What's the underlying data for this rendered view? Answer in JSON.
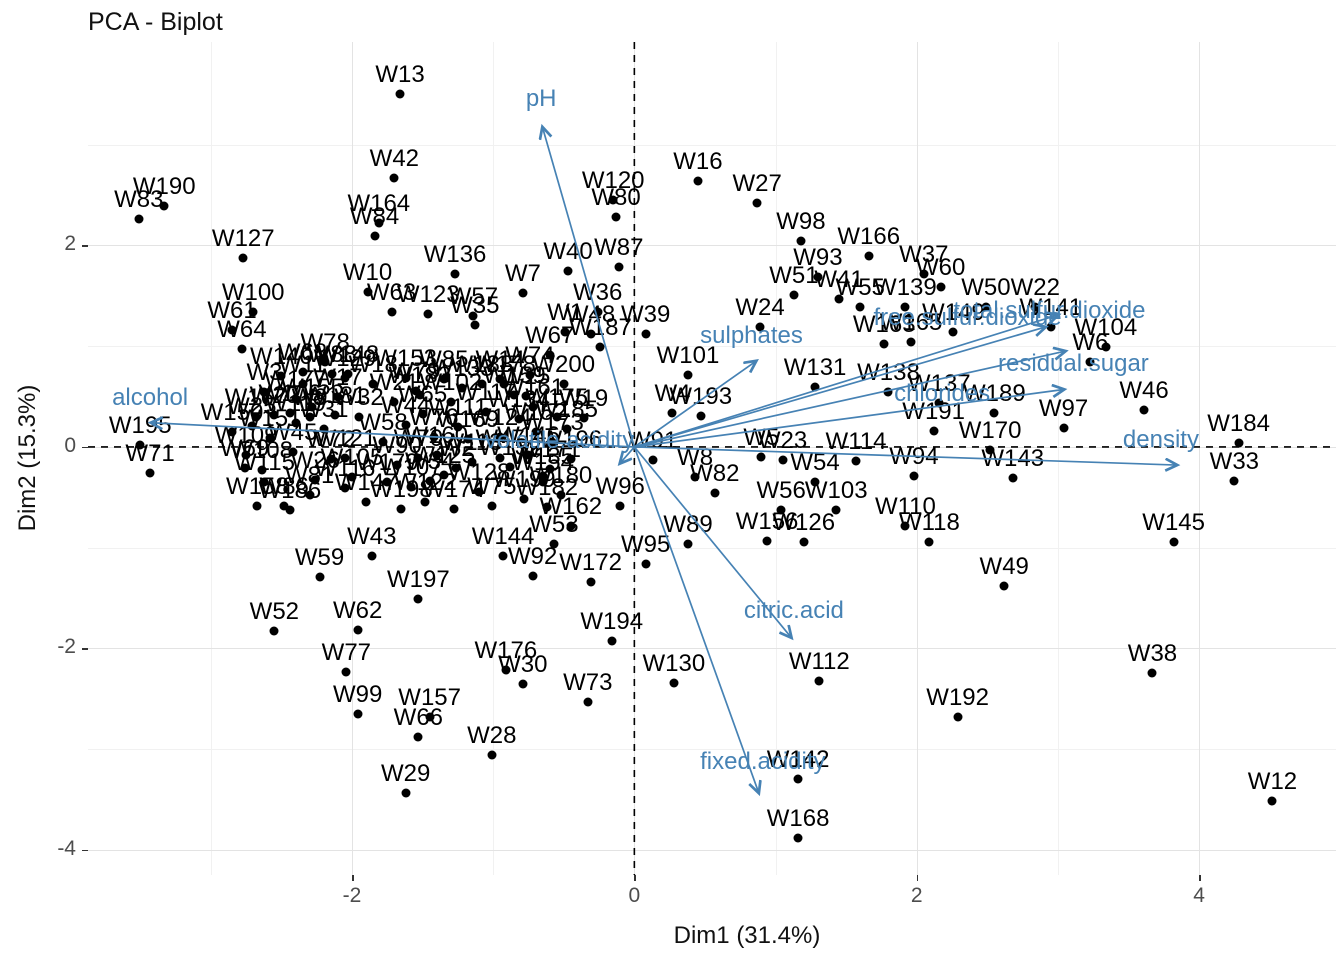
{
  "title": "PCA - Biplot",
  "chart_data": {
    "type": "scatter",
    "title": "PCA - Biplot",
    "xlabel": "Dim1 (31.4%)",
    "ylabel": "Dim2 (15.3%)",
    "xlim": [
      -3.87,
      4.97
    ],
    "ylim": [
      -4.25,
      4.02
    ],
    "x_ticks": [
      -2,
      0,
      2,
      4
    ],
    "x_minor_ticks": [
      -3,
      -1,
      1,
      3
    ],
    "y_ticks": [
      -4,
      -2,
      0,
      2
    ],
    "y_minor_ticks": [
      -3,
      -1,
      1,
      3
    ],
    "grid": true,
    "legend": "none",
    "zero_lines": "dashed",
    "colors": {
      "points": "#000000",
      "arrows": "#4682B4",
      "grid_major": "#e3e3e3",
      "grid_minor": "#f1f1f1",
      "axis_text": "#4d4d4d",
      "zero_line": "#000000"
    },
    "variables": [
      {
        "name": "pH",
        "tip": {
          "x": -0.65,
          "y": 3.17
        },
        "label": {
          "x": -0.66,
          "y": 3.45
        }
      },
      {
        "name": "sulphates",
        "tip": {
          "x": 0.86,
          "y": 0.85
        },
        "label": {
          "x": 0.83,
          "y": 1.1
        }
      },
      {
        "name": "alcohol",
        "tip": {
          "x": -3.42,
          "y": 0.24
        },
        "label": {
          "x": -3.43,
          "y": 0.49
        }
      },
      {
        "name": "volatile.acidity",
        "tip": {
          "x": -0.1,
          "y": -0.16
        },
        "label": {
          "x": -0.53,
          "y": 0.06
        }
      },
      {
        "name": "citric.acid",
        "tip": {
          "x": 1.11,
          "y": -1.89
        },
        "label": {
          "x": 1.13,
          "y": -1.63
        }
      },
      {
        "name": "fixed.acidity",
        "tip": {
          "x": 0.88,
          "y": -3.43
        },
        "label": {
          "x": 0.91,
          "y": -3.13
        }
      },
      {
        "name": "density",
        "tip": {
          "x": 3.84,
          "y": -0.18
        },
        "label": {
          "x": 3.73,
          "y": 0.07
        }
      },
      {
        "name": "chlorides",
        "tip": {
          "x": 3.04,
          "y": 0.57
        },
        "label": {
          "x": 2.18,
          "y": 0.53
        }
      },
      {
        "name": "residual.sugar",
        "tip": {
          "x": 3.05,
          "y": 0.95
        },
        "label": {
          "x": 3.11,
          "y": 0.82
        }
      },
      {
        "name": "free.sulfur.dioxide",
        "tip": {
          "x": 2.91,
          "y": 1.19
        },
        "label": {
          "x": 2.36,
          "y": 1.28
        }
      },
      {
        "name": "total.sulfur.dioxide",
        "tip": {
          "x": 3.0,
          "y": 1.31
        },
        "label": {
          "x": 2.94,
          "y": 1.35
        }
      }
    ],
    "points": [
      [
        "W1",
        -0.49,
        1.14
      ],
      [
        "W2",
        -1.26,
        -0.21
      ],
      [
        "W3",
        -2.62,
        0.55
      ],
      [
        "W4",
        0.27,
        0.34
      ],
      [
        "W5",
        0.9,
        -0.1
      ],
      [
        "W6",
        3.23,
        0.84
      ],
      [
        "W7",
        -0.79,
        1.53
      ],
      [
        "W8",
        0.43,
        -0.3
      ],
      [
        "W9",
        -2.3,
        0.3
      ],
      [
        "W10",
        -1.89,
        1.54
      ],
      [
        "W11",
        -2.35,
        0.62
      ],
      [
        "W12",
        4.52,
        -3.52
      ],
      [
        "W13",
        -1.66,
        3.5
      ],
      [
        "W14",
        -0.95,
        0.67
      ],
      [
        "W15",
        -0.77,
        0.51
      ],
      [
        "W16",
        0.45,
        2.64
      ],
      [
        "W17",
        -2.1,
        0.5
      ],
      [
        "W18",
        -1.85,
        0.62
      ],
      [
        "W19",
        -0.36,
        0.29
      ],
      [
        "W20",
        -2.55,
        0.32
      ],
      [
        "W21",
        -1.7,
        0.45
      ],
      [
        "W22",
        2.84,
        1.39
      ],
      [
        "W23",
        1.05,
        -0.13
      ],
      [
        "W24",
        0.89,
        1.19
      ],
      [
        "W25",
        -2.71,
        0.21
      ],
      [
        "W26",
        -2.26,
        -0.33
      ],
      [
        "W27",
        0.87,
        2.42
      ],
      [
        "W28",
        -1.01,
        -3.06
      ],
      [
        "W29",
        -1.62,
        -3.44
      ],
      [
        "W30",
        -0.79,
        -2.35
      ],
      [
        "W31",
        -2.2,
        0.18
      ],
      [
        "W32",
        -1.95,
        0.3
      ],
      [
        "W33",
        4.25,
        -0.34
      ],
      [
        "W34",
        -1.45,
        -0.34
      ],
      [
        "W35",
        -1.13,
        1.21
      ],
      [
        "W36",
        -0.26,
        1.34
      ],
      [
        "W37",
        2.05,
        1.72
      ],
      [
        "W38",
        3.67,
        -2.24
      ],
      [
        "W39",
        0.08,
        1.12
      ],
      [
        "W40",
        -0.47,
        1.75
      ],
      [
        "W41",
        1.45,
        1.47
      ],
      [
        "W42",
        -1.7,
        2.67
      ],
      [
        "W43",
        -1.86,
        -1.08
      ],
      [
        "W44",
        -1.62,
        0.22
      ],
      [
        "W45",
        -2.42,
        -0.05
      ],
      [
        "W46",
        3.61,
        0.37
      ],
      [
        "W47",
        -0.95,
        -0.11
      ],
      [
        "W48",
        -0.31,
        1.12
      ],
      [
        "W49",
        2.62,
        -1.38
      ],
      [
        "W50",
        2.49,
        1.39
      ],
      [
        "W51",
        1.13,
        1.51
      ],
      [
        "W52",
        -2.55,
        -1.83
      ],
      [
        "W53",
        -0.57,
        -0.96
      ],
      [
        "W54",
        1.28,
        -0.35
      ],
      [
        "W55",
        1.6,
        1.39
      ],
      [
        "W56",
        1.04,
        -0.63
      ],
      [
        "W57",
        -1.14,
        1.3
      ],
      [
        "W58",
        -1.78,
        0.05
      ],
      [
        "W59",
        -2.23,
        -1.29
      ],
      [
        "W60",
        2.17,
        1.59
      ],
      [
        "W61",
        -2.85,
        1.16
      ],
      [
        "W62",
        -1.96,
        -1.82
      ],
      [
        "W63",
        -1.72,
        1.34
      ],
      [
        "W64",
        -2.78,
        0.97
      ],
      [
        "W65",
        -1.5,
        0.33
      ],
      [
        "W66",
        -1.53,
        -2.88
      ],
      [
        "W67",
        -0.6,
        0.91
      ],
      [
        "W68",
        -2.35,
        0.74
      ],
      [
        "W69",
        -2.76,
        -0.21
      ],
      [
        "W70",
        -1.53,
        -0.11
      ],
      [
        "W71",
        -3.43,
        -0.26
      ],
      [
        "W72",
        -2.15,
        -0.12
      ],
      [
        "W73",
        -0.33,
        -2.53
      ],
      [
        "W74",
        -0.74,
        0.71
      ],
      [
        "W75",
        -1.01,
        -0.59
      ],
      [
        "W76",
        -1.42,
        0.1
      ],
      [
        "W77",
        -2.04,
        -2.23
      ],
      [
        "W78",
        -2.19,
        0.84
      ],
      [
        "W79",
        -1.55,
        0.56
      ],
      [
        "W80",
        -0.13,
        2.28
      ],
      [
        "W81",
        -2.3,
        -0.48
      ],
      [
        "W82",
        0.57,
        -0.46
      ],
      [
        "W83",
        -3.51,
        2.26
      ],
      [
        "W84",
        -1.84,
        2.09
      ],
      [
        "W85",
        -1.35,
        0.67
      ],
      [
        "W86",
        -2.48,
        -0.59
      ],
      [
        "W87",
        -0.11,
        1.79
      ],
      [
        "W88",
        -2.14,
        0.72
      ],
      [
        "W89",
        0.38,
        -0.96
      ],
      [
        "W90",
        -1.68,
        -0.18
      ],
      [
        "W91",
        0.13,
        -0.13
      ],
      [
        "W92",
        -0.72,
        -1.28
      ],
      [
        "W93",
        1.3,
        1.69
      ],
      [
        "W94",
        1.98,
        -0.29
      ],
      [
        "W95",
        0.08,
        -1.16
      ],
      [
        "W96",
        -0.1,
        -0.59
      ],
      [
        "W97",
        3.04,
        0.19
      ],
      [
        "W98",
        1.18,
        2.04
      ],
      [
        "W99",
        -1.96,
        -2.65
      ],
      [
        "W100",
        -2.7,
        1.34
      ],
      [
        "W101",
        0.38,
        0.71
      ],
      [
        "W102",
        -1.3,
        0.45
      ],
      [
        "W103",
        1.43,
        -0.63
      ],
      [
        "W104",
        3.34,
        0.99
      ],
      [
        "W105",
        -2.0,
        -0.3
      ],
      [
        "W106",
        -2.44,
        0.34
      ],
      [
        "W107",
        -1.58,
        -0.4
      ],
      [
        "W108",
        -2.64,
        -0.23
      ],
      [
        "W109",
        -2.75,
        -0.08
      ],
      [
        "W110",
        1.92,
        -0.79
      ],
      [
        "W111",
        -1.25,
        0.2
      ],
      [
        "W112",
        1.31,
        -2.32
      ],
      [
        "W113",
        -1.15,
        -0.15
      ],
      [
        "W114",
        1.57,
        -0.14
      ],
      [
        "W115",
        -2.62,
        -0.35
      ],
      [
        "W116",
        -2.05,
        -0.41
      ],
      [
        "W117",
        -1.05,
        0.35
      ],
      [
        "W118",
        2.09,
        -0.94
      ],
      [
        "W119",
        -2.4,
        0.24
      ],
      [
        "W120",
        -0.15,
        2.45
      ],
      [
        "W121",
        -2.05,
        -0.11
      ],
      [
        "W122",
        -1.48,
        -0.55
      ],
      [
        "W123",
        -1.46,
        1.32
      ],
      [
        "W124",
        -0.95,
        0.1
      ],
      [
        "W125",
        -1.35,
        -0.28
      ],
      [
        "W126",
        1.2,
        -0.94
      ],
      [
        "W127",
        -2.77,
        1.88
      ],
      [
        "W128",
        -1.1,
        -0.45
      ],
      [
        "W129",
        -2.05,
        0.68
      ],
      [
        "W130",
        0.28,
        -2.34
      ],
      [
        "W131",
        1.28,
        0.59
      ],
      [
        "W132",
        -0.88,
        -0.2
      ],
      [
        "W133",
        -1.22,
        0.58
      ],
      [
        "W134",
        -0.82,
        0.28
      ],
      [
        "W135",
        -0.65,
        -0.29
      ],
      [
        "W136",
        -1.27,
        1.72
      ],
      [
        "W137",
        2.16,
        0.44
      ],
      [
        "W138",
        1.8,
        0.55
      ],
      [
        "W139",
        1.92,
        1.39
      ],
      [
        "W140",
        -2.5,
        0.7
      ],
      [
        "W141",
        2.95,
        1.19
      ],
      [
        "W142",
        1.16,
        -3.3
      ],
      [
        "W143",
        2.68,
        -0.31
      ],
      [
        "W144",
        -0.93,
        -1.08
      ],
      [
        "W145",
        3.82,
        -0.94
      ],
      [
        "W146",
        -0.75,
        -0.08
      ],
      [
        "W147",
        -1.9,
        -0.55
      ],
      [
        "W148",
        -2.03,
        0.72
      ],
      [
        "W149",
        2.26,
        1.14
      ],
      [
        "W150",
        -2.85,
        0.15
      ],
      [
        "W151",
        -2.58,
        0.09
      ],
      [
        "W152",
        -0.7,
        0.15
      ],
      [
        "W153",
        -1.62,
        0.68
      ],
      [
        "W154",
        -0.65,
        -0.35
      ],
      [
        "W155",
        -2.28,
        0.4
      ],
      [
        "W156",
        0.94,
        -0.93
      ],
      [
        "W157",
        -1.45,
        -2.68
      ],
      [
        "W158",
        -2.67,
        -0.59
      ],
      [
        "W159",
        -0.85,
        0.52
      ],
      [
        "W160",
        -1.4,
        -0.08
      ],
      [
        "W161",
        -0.72,
        0.4
      ],
      [
        "W162",
        -0.45,
        -0.79
      ],
      [
        "W163",
        1.77,
        1.02
      ],
      [
        "W164",
        -1.81,
        2.22
      ],
      [
        "W165",
        1.96,
        1.04
      ],
      [
        "W166",
        1.66,
        1.9
      ],
      [
        "W167",
        -2.68,
        0.3
      ],
      [
        "W168",
        1.16,
        -3.88
      ],
      [
        "W169",
        -1.18,
        0.08
      ],
      [
        "W170",
        2.52,
        -0.03
      ],
      [
        "W171",
        -0.6,
        -0.22
      ],
      [
        "W172",
        -0.31,
        -1.34
      ],
      [
        "W173",
        -0.58,
        0.05
      ],
      [
        "W174",
        -1.28,
        -0.62
      ],
      [
        "W175",
        -0.55,
        0.3
      ],
      [
        "W176",
        -0.91,
        -2.21
      ],
      [
        "W177",
        -2.4,
        0.48
      ],
      [
        "W178",
        -0.92,
        0.62
      ],
      [
        "W179",
        -1.75,
        -0.35
      ],
      [
        "W180",
        -0.52,
        -0.48
      ],
      [
        "W181",
        -2.12,
        0.32
      ],
      [
        "W182",
        -0.62,
        -0.6
      ],
      [
        "W183",
        -1.52,
        0.52
      ],
      [
        "W184",
        4.28,
        0.04
      ],
      [
        "W185",
        -0.48,
        0.18
      ],
      [
        "W186",
        -2.44,
        -0.63
      ],
      [
        "W187",
        -0.24,
        0.99
      ],
      [
        "W188",
        -1.08,
        0.62
      ],
      [
        "W189",
        2.55,
        0.34
      ],
      [
        "W190",
        -3.33,
        2.39
      ],
      [
        "W191",
        2.12,
        0.16
      ],
      [
        "W192",
        2.29,
        -2.68
      ],
      [
        "W193",
        0.47,
        0.31
      ],
      [
        "W194",
        -0.16,
        -1.93
      ],
      [
        "W195",
        -3.5,
        0.02
      ],
      [
        "W196",
        -0.45,
        -0.12
      ],
      [
        "W197",
        -1.53,
        -1.51
      ],
      [
        "W198",
        -1.65,
        -0.62
      ],
      [
        "W199",
        -0.78,
        -0.52
      ],
      [
        "W200",
        -0.5,
        0.62
      ]
    ]
  }
}
